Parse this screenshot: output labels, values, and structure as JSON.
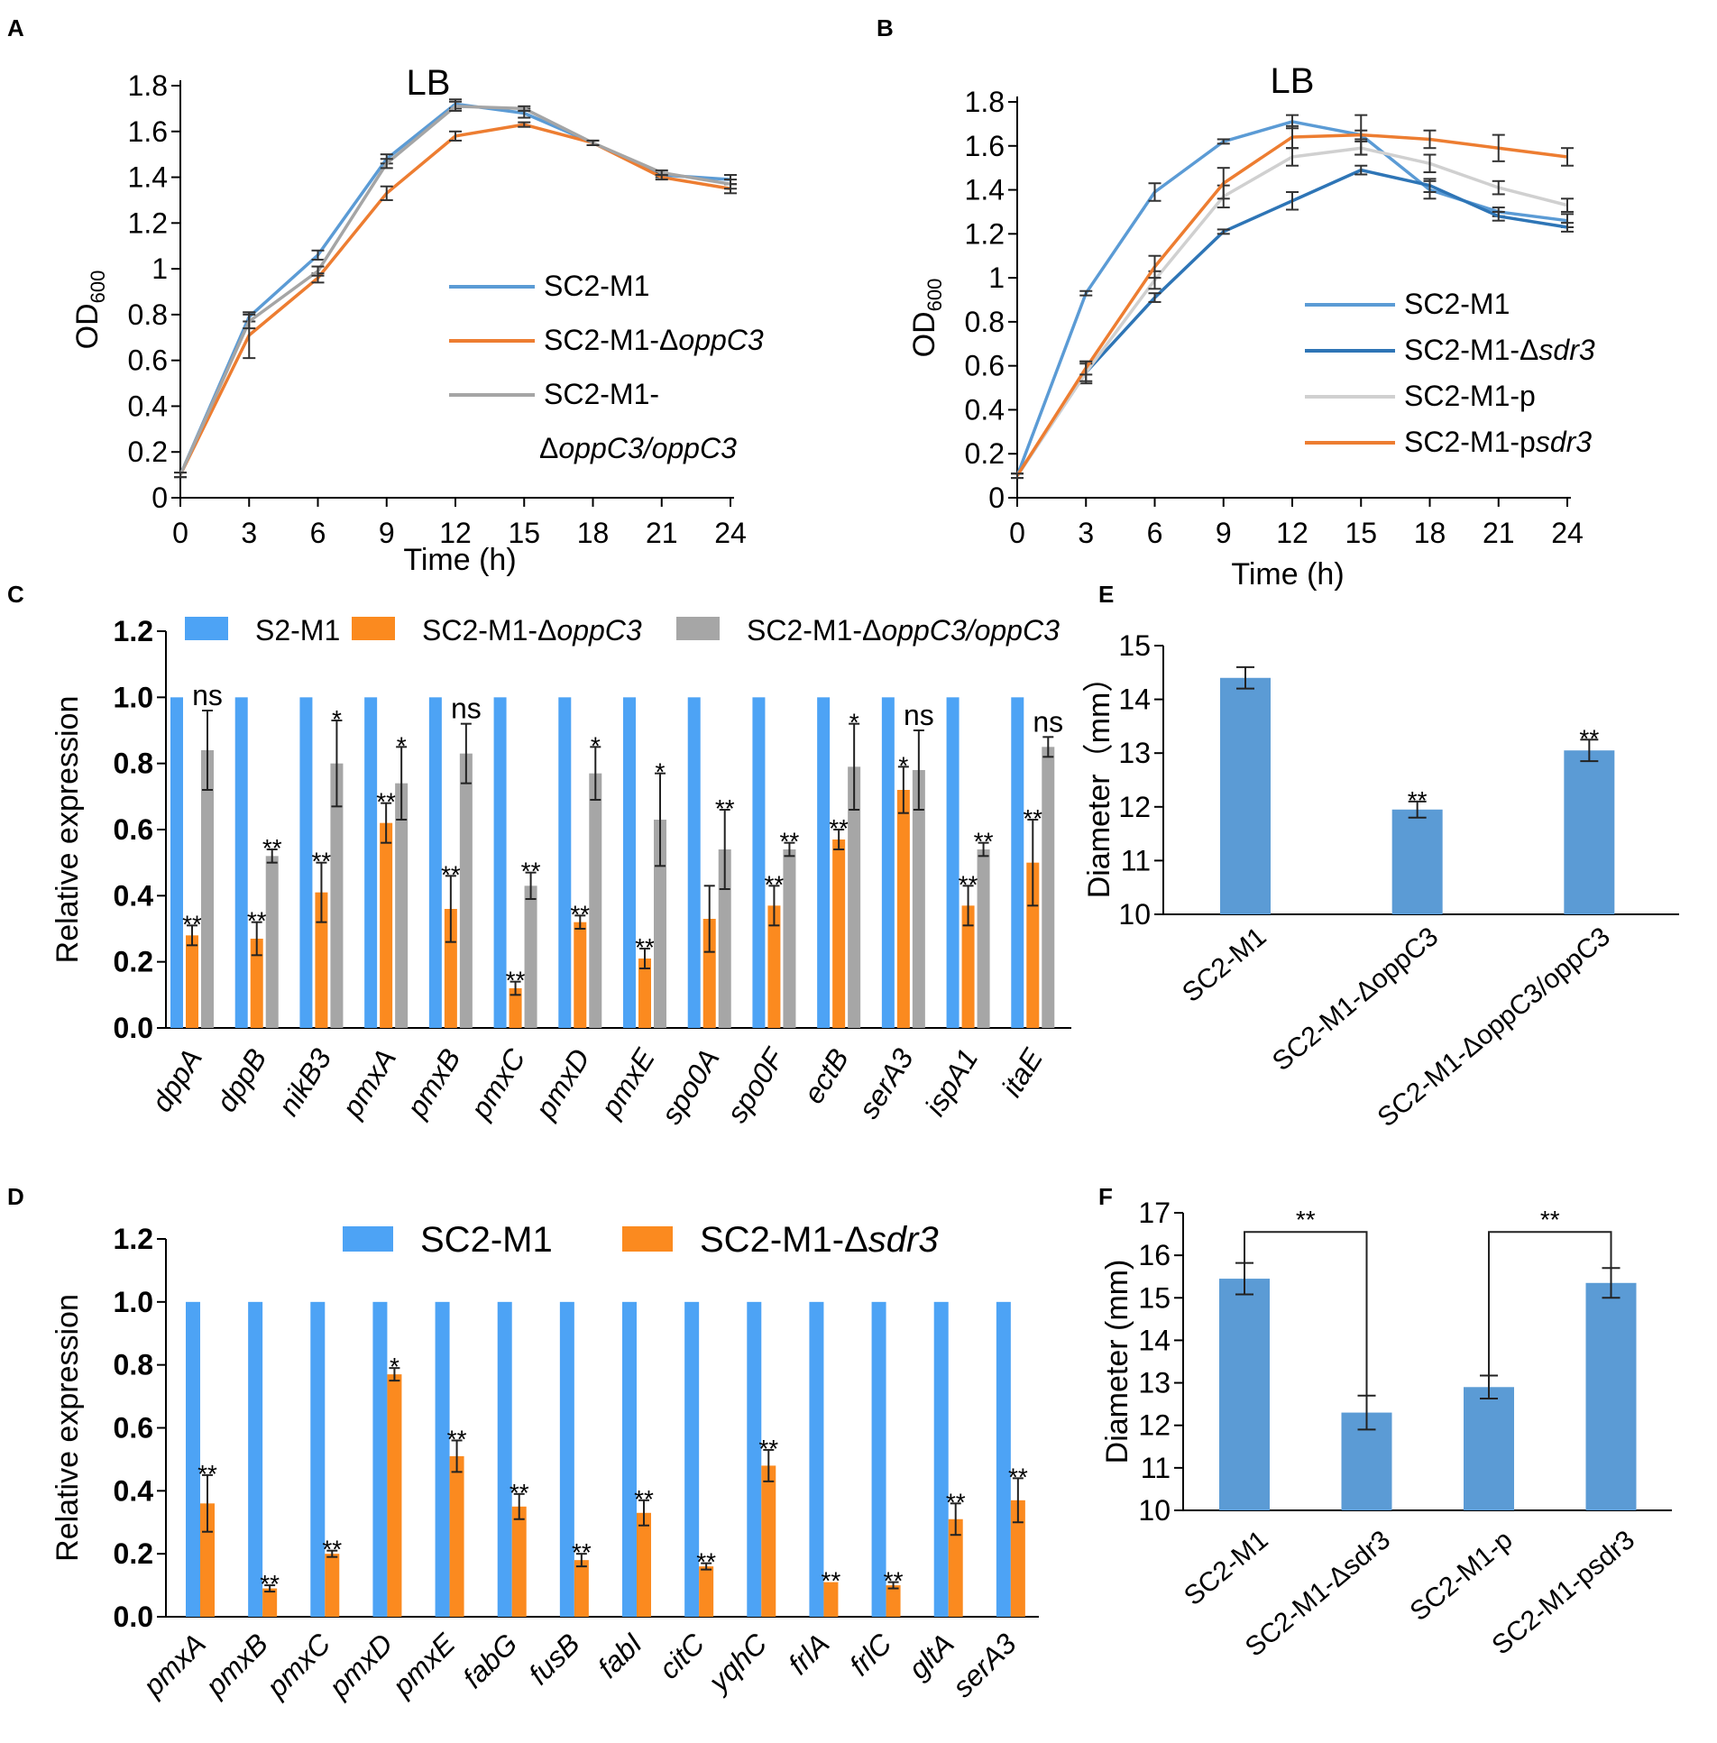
{
  "figure": {
    "panel_labels": [
      "A",
      "B",
      "C",
      "D",
      "E",
      "F"
    ]
  },
  "chart_data": [
    {
      "id": "A",
      "type": "line",
      "title": "LB",
      "xlabel": "Time (h)",
      "ylabel": "OD",
      "ylabel_sub": "600",
      "xlim": [
        0,
        24
      ],
      "ylim": [
        0,
        1.8
      ],
      "xticks": [
        "0",
        "3",
        "6",
        "9",
        "12",
        "15",
        "18",
        "21",
        "24"
      ],
      "yticks": [
        "0",
        "0.2",
        "0.4",
        "0.6",
        "0.8",
        "1",
        "1.2",
        "1.4",
        "1.6",
        "1.8"
      ],
      "x": [
        0,
        3,
        6,
        9,
        12,
        15,
        18,
        21,
        24
      ],
      "series": [
        {
          "name": "SC2-M1",
          "color": "#5b9bd5",
          "values": [
            0.1,
            0.79,
            1.06,
            1.48,
            1.72,
            1.68,
            1.55,
            1.41,
            1.39
          ],
          "err": [
            0.01,
            0.02,
            0.02,
            0.02,
            0.02,
            0.02,
            0.01,
            0.01,
            0.02
          ]
        },
        {
          "name": "SC2-M1-ΔoppC3",
          "color": "#ed7d31",
          "values": [
            0.1,
            0.71,
            0.96,
            1.33,
            1.58,
            1.63,
            1.55,
            1.4,
            1.35
          ],
          "err": [
            0.01,
            0.1,
            0.02,
            0.03,
            0.02,
            0.01,
            0.01,
            0.01,
            0.02
          ]
        },
        {
          "name": "SC2-M1-ΔoppC3/oppC3",
          "color": "#a5a5a5",
          "values": [
            0.1,
            0.77,
            0.99,
            1.46,
            1.71,
            1.7,
            1.55,
            1.42,
            1.37
          ],
          "err": [
            0.01,
            0.03,
            0.02,
            0.02,
            0.02,
            0.01,
            0.01,
            0.01,
            0.02
          ]
        }
      ],
      "legend_lines": [
        {
          "prefix": "SC2-M1",
          "italic": ""
        },
        {
          "prefix": "SC2-M1-Δ",
          "italic": "oppC3"
        },
        {
          "prefix": "SC2-M1-",
          "italic": ""
        },
        {
          "prefix": "Δ",
          "italic": "oppC3/oppC3"
        }
      ],
      "legend_position": "center-right"
    },
    {
      "id": "B",
      "type": "line",
      "title": "LB",
      "xlabel": "Time (h)",
      "ylabel": "OD",
      "ylabel_sub": "600",
      "xlim": [
        0,
        24
      ],
      "ylim": [
        0,
        1.8
      ],
      "xticks": [
        "0",
        "3",
        "6",
        "9",
        "12",
        "15",
        "18",
        "21",
        "24"
      ],
      "yticks": [
        "0",
        "0.2",
        "0.4",
        "0.6",
        "0.8",
        "1",
        "1.2",
        "1.4",
        "1.6",
        "1.8"
      ],
      "x": [
        0,
        3,
        6,
        9,
        12,
        15,
        18,
        21,
        24
      ],
      "series": [
        {
          "name": "SC2-M1",
          "color": "#5b9bd5",
          "values": [
            0.1,
            0.93,
            1.39,
            1.62,
            1.71,
            1.65,
            1.4,
            1.3,
            1.26
          ],
          "err": [
            0.01,
            0.01,
            0.04,
            0.01,
            0.03,
            0.02,
            0.04,
            0.02,
            0.03
          ]
        },
        {
          "name": "SC2-M1-Δsdr3",
          "color": "#2e75b6",
          "values": [
            0.1,
            0.57,
            0.91,
            1.21,
            1.35,
            1.49,
            1.42,
            1.28,
            1.23
          ],
          "err": [
            0.01,
            0.05,
            0.02,
            0.01,
            0.04,
            0.02,
            0.03,
            0.02,
            0.02
          ]
        },
        {
          "name": "SC2-M1-p",
          "color": "#d0d0d0",
          "values": [
            0.1,
            0.57,
            0.99,
            1.37,
            1.55,
            1.59,
            1.52,
            1.41,
            1.33
          ],
          "err": [
            0.01,
            0.04,
            0.04,
            0.05,
            0.04,
            0.03,
            0.04,
            0.03,
            0.03
          ]
        },
        {
          "name": "SC2-M1-psdr3",
          "color": "#ed7d31",
          "values": [
            0.1,
            0.59,
            1.05,
            1.43,
            1.64,
            1.65,
            1.63,
            1.59,
            1.55
          ],
          "err": [
            0.01,
            0.03,
            0.05,
            0.07,
            0.05,
            0.09,
            0.04,
            0.06,
            0.04
          ]
        }
      ],
      "legend_lines": [
        {
          "prefix": "SC2-M1",
          "italic": ""
        },
        {
          "prefix": "SC2-M1-Δ",
          "italic": "sdr3"
        },
        {
          "prefix": "SC2-M1-p",
          "italic": ""
        },
        {
          "prefix": "SC2-M1-p",
          "italic": "sdr3"
        }
      ],
      "legend_position": "bottom-right"
    },
    {
      "id": "C",
      "type": "bar",
      "ylabel": "Relative expression",
      "ylim": [
        0,
        1.2
      ],
      "yticks": [
        "0.0",
        "0.2",
        "0.4",
        "0.6",
        "0.8",
        "1.0",
        "1.2"
      ],
      "categories": [
        "dppA",
        "dppB",
        "nikB3",
        "pmxA",
        "pmxB",
        "pmxC",
        "pmxD",
        "pmxE",
        "spo0A",
        "spo0F",
        "ectB",
        "serA3",
        "ispA1",
        "itaE"
      ],
      "series": [
        {
          "name": "S2-M1",
          "color": "#4da3f5",
          "values": [
            1,
            1,
            1,
            1,
            1,
            1,
            1,
            1,
            1,
            1,
            1,
            1,
            1,
            1
          ],
          "err": [
            0,
            0,
            0,
            0,
            0,
            0,
            0,
            0,
            0,
            0,
            0,
            0,
            0,
            0
          ],
          "sig": [
            "",
            "",
            "",
            "",
            "",
            "",
            "",
            "",
            "",
            "",
            "",
            "",
            "",
            ""
          ]
        },
        {
          "name": "SC2-M1-ΔoppC3",
          "color": "#fb8a1f",
          "values": [
            0.28,
            0.27,
            0.41,
            0.62,
            0.36,
            0.12,
            0.32,
            0.21,
            0.33,
            0.37,
            0.57,
            0.72,
            0.37,
            0.5
          ],
          "err": [
            0.03,
            0.05,
            0.09,
            0.06,
            0.1,
            0.02,
            0.02,
            0.03,
            0.1,
            0.06,
            0.03,
            0.07,
            0.06,
            0.13
          ],
          "sig": [
            "**",
            "**",
            "**",
            "**",
            "**",
            "**",
            "**",
            "**",
            "",
            "**",
            "**",
            "*",
            "**",
            "**"
          ]
        },
        {
          "name": "SC2-M1-ΔoppC3/oppC3",
          "color": "#a6a6a6",
          "values": [
            0.84,
            0.52,
            0.8,
            0.74,
            0.83,
            0.43,
            0.77,
            0.63,
            0.54,
            0.54,
            0.79,
            0.78,
            0.54,
            0.85
          ],
          "err": [
            0.12,
            0.02,
            0.13,
            0.11,
            0.09,
            0.04,
            0.08,
            0.14,
            0.12,
            0.02,
            0.13,
            0.12,
            0.02,
            0.03
          ],
          "sig": [
            "ns",
            "**",
            "*",
            "*",
            "ns",
            "**",
            "*",
            "*",
            "**",
            "**",
            "*",
            "ns",
            "**",
            "ns"
          ]
        }
      ],
      "legend_items": [
        {
          "prefix": "S2-M1",
          "italic": "",
          "suffix": ""
        },
        {
          "prefix": "SC2-M1-Δ",
          "italic": "oppC3",
          "suffix": ""
        },
        {
          "prefix": "SC2-M1-Δ",
          "italic": "oppC3/oppC3",
          "suffix": ""
        }
      ],
      "legend_position": "top"
    },
    {
      "id": "D",
      "type": "bar",
      "ylabel": "Relative expression",
      "ylim": [
        0,
        1.2
      ],
      "yticks": [
        "0.0",
        "0.2",
        "0.4",
        "0.6",
        "0.8",
        "1.0",
        "1.2"
      ],
      "categories": [
        "pmxA",
        "pmxB",
        "pmxC",
        "pmxD",
        "pmxE",
        "fabG",
        "fusB",
        "fabI",
        "citC",
        "yqhC",
        "frlA",
        "frlC",
        "gltA",
        "serA3"
      ],
      "series": [
        {
          "name": "SC2-M1",
          "color": "#4da3f5",
          "values": [
            1,
            1,
            1,
            1,
            1,
            1,
            1,
            1,
            1,
            1,
            1,
            1,
            1,
            1
          ],
          "err": [
            0,
            0,
            0,
            0,
            0,
            0,
            0,
            0,
            0,
            0,
            0,
            0,
            0,
            0
          ],
          "sig": [
            "",
            "",
            "",
            "",
            "",
            "",
            "",
            "",
            "",
            "",
            "",
            "",
            "",
            ""
          ]
        },
        {
          "name": "SC2-M1-Δsdr3",
          "color": "#fb8a1f",
          "values": [
            0.36,
            0.09,
            0.2,
            0.77,
            0.51,
            0.35,
            0.18,
            0.33,
            0.16,
            0.48,
            0.11,
            0.1,
            0.31,
            0.37
          ],
          "err": [
            0.09,
            0.01,
            0.01,
            0.02,
            0.05,
            0.04,
            0.02,
            0.04,
            0.01,
            0.05,
            0.0,
            0.01,
            0.05,
            0.07
          ],
          "sig": [
            "**",
            "**",
            "**",
            "*",
            "**",
            "**",
            "**",
            "**",
            "**",
            "**",
            "**",
            "**",
            "**",
            "**"
          ]
        }
      ],
      "legend_items": [
        {
          "prefix": "SC2-M1",
          "italic": "",
          "suffix": ""
        },
        {
          "prefix": "SC2-M1-Δ",
          "italic": "sdr3",
          "suffix": ""
        }
      ],
      "legend_position": "top"
    },
    {
      "id": "E",
      "type": "bar",
      "ylabel": "Diameter（mm）",
      "ylim": [
        10,
        15
      ],
      "yticks": [
        "10",
        "11",
        "12",
        "13",
        "14",
        "15"
      ],
      "categories": [
        "SC2-M1",
        "SC2-M1-ΔoppC3",
        "SC2-M1-ΔoppC3/oppC3"
      ],
      "series": [
        {
          "name": "Diameter",
          "color": "#5b9bd5",
          "values": [
            14.4,
            11.95,
            13.05
          ],
          "err": [
            0.2,
            0.15,
            0.2
          ],
          "sig": [
            "",
            "**",
            "**"
          ]
        }
      ]
    },
    {
      "id": "F",
      "type": "bar",
      "ylabel": "Diameter (mm)",
      "ylim": [
        10,
        17
      ],
      "yticks": [
        "10",
        "11",
        "12",
        "13",
        "14",
        "15",
        "16",
        "17"
      ],
      "categories": [
        "SC2-M1",
        "SC2-M1-Δsdr3",
        "SC2-M1-p",
        "SC2-M1-psdr3"
      ],
      "series": [
        {
          "name": "Diameter",
          "color": "#5b9bd5",
          "values": [
            15.45,
            12.3,
            12.9,
            15.35
          ],
          "err": [
            0.37,
            0.4,
            0.27,
            0.35
          ],
          "sig": [
            "",
            "",
            "",
            ""
          ]
        }
      ],
      "brackets": [
        {
          "from": 0,
          "to": 1,
          "label": "**"
        },
        {
          "from": 2,
          "to": 3,
          "label": "**"
        }
      ]
    }
  ]
}
